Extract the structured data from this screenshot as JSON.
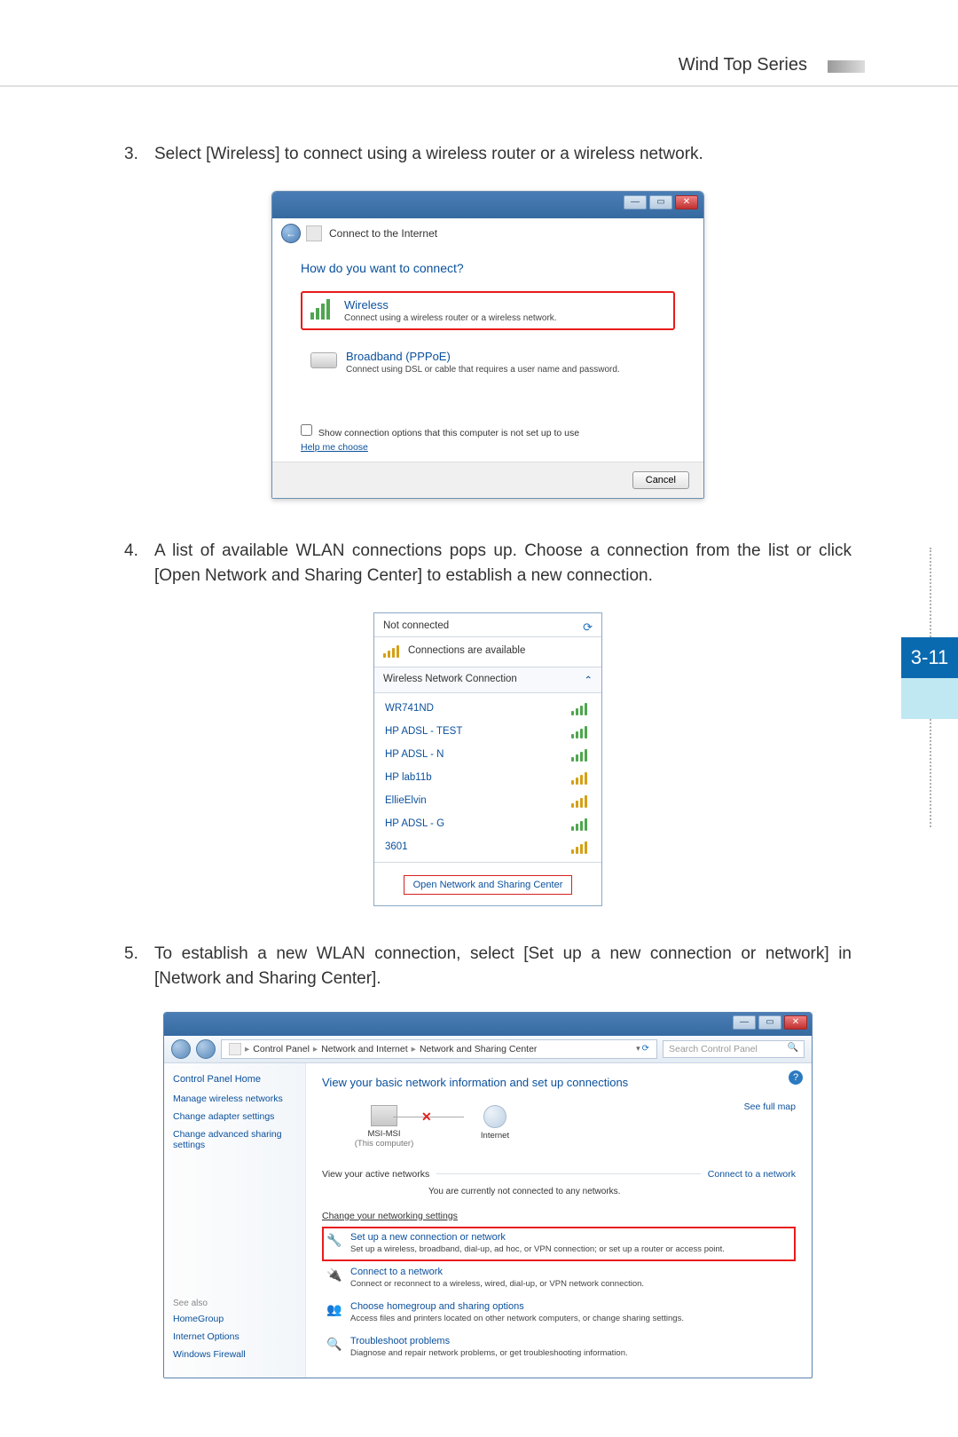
{
  "page": {
    "series": "Wind Top Series",
    "tab": "3-11",
    "tab_bg": "#0a6ab0",
    "tab_light": "#bfe8f2"
  },
  "steps": {
    "s3": {
      "num": "3.",
      "text": "Select [Wireless] to connect using a wireless router or a wireless network."
    },
    "s4": {
      "num": "4.",
      "text": "A list of available WLAN connections pops up. Choose a connection from the list or click [Open Network and Sharing Center] to establish a new connection."
    },
    "s5": {
      "num": "5.",
      "text": "To establish a new WLAN connection, select [Set up a new connection or network] in [Network and Sharing Center]."
    }
  },
  "wizard": {
    "title": "Connect to the Internet",
    "question": "How do you want to connect?",
    "wireless_title": "Wireless",
    "wireless_sub": "Connect using a wireless router or a wireless network.",
    "broadband_title": "Broadband (PPPoE)",
    "broadband_sub": "Connect using DSL or cable that requires a user name and password.",
    "show_options": "Show connection options that this computer is not set up to use",
    "help": "Help me choose",
    "cancel": "Cancel",
    "highlight_color": "#e81c1c"
  },
  "wlan": {
    "not_connected": "Not connected",
    "available": "Connections are available",
    "section": "Wireless Network Connection",
    "networks": [
      {
        "name": "WR741ND",
        "sig": "green"
      },
      {
        "name": "HP ADSL - TEST",
        "sig": "green"
      },
      {
        "name": "HP ADSL - N",
        "sig": "green"
      },
      {
        "name": "HP lab11b",
        "sig": "yellow"
      },
      {
        "name": "EllieElvin",
        "sig": "yellow"
      },
      {
        "name": "HP ADSL - G",
        "sig": "green"
      },
      {
        "name": "3601",
        "sig": "yellow"
      }
    ],
    "open_center": "Open Network and Sharing Center",
    "highlight_color": "#d82020"
  },
  "nsc": {
    "breadcrumb": [
      "Control Panel",
      "Network and Internet",
      "Network and Sharing Center"
    ],
    "search_placeholder": "Search Control Panel",
    "sidebar": {
      "home": "Control Panel Home",
      "links": [
        "Manage wireless networks",
        "Change adapter settings",
        "Change advanced sharing settings"
      ],
      "seealso_hdr": "See also",
      "seealso": [
        "HomeGroup",
        "Internet Options",
        "Windows Firewall"
      ]
    },
    "heading": "View your basic network information and set up connections",
    "see_full_map": "See full map",
    "pc_label": "MSI-MSI",
    "pc_sub": "(This computer)",
    "inet_label": "Internet",
    "active_hdr": "View your active networks",
    "connect_to": "Connect to a network",
    "no_net": "You are currently not connected to any networks.",
    "change_hdr": "Change your networking settings",
    "items": [
      {
        "title": "Set up a new connection or network",
        "desc": "Set up a wireless, broadband, dial-up, ad hoc, or VPN connection; or set up a router or access point.",
        "highlight": true,
        "icon": "🔧"
      },
      {
        "title": "Connect to a network",
        "desc": "Connect or reconnect to a wireless, wired, dial-up, or VPN network connection.",
        "highlight": false,
        "icon": "🔌"
      },
      {
        "title": "Choose homegroup and sharing options",
        "desc": "Access files and printers located on other network computers, or change sharing settings.",
        "highlight": false,
        "icon": "👥"
      },
      {
        "title": "Troubleshoot problems",
        "desc": "Diagnose and repair network problems, or get troubleshooting information.",
        "highlight": false,
        "icon": "🔍"
      }
    ],
    "highlight_color": "#e81c1c"
  }
}
